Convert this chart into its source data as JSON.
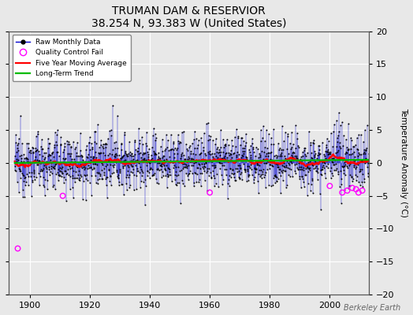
{
  "title": "TRUMAN DAM & RESERVIOR",
  "subtitle": "38.254 N, 93.383 W (United States)",
  "ylabel": "Temperature Anomaly (°C)",
  "credit": "Berkeley Earth",
  "year_start": 1895,
  "year_end": 2013,
  "ylim": [
    -20,
    20
  ],
  "yticks": [
    -20,
    -15,
    -10,
    -5,
    0,
    5,
    10,
    15,
    20
  ],
  "xticks": [
    1900,
    1920,
    1940,
    1960,
    1980,
    2000
  ],
  "raw_line_color": "#0000cc",
  "raw_dot_color": "#000000",
  "moving_avg_color": "#ff0000",
  "trend_color": "#00bb00",
  "qc_color": "#ff00ff",
  "background_color": "#e8e8e8",
  "grid_color": "#ffffff",
  "seed": 12345,
  "n_months": 1416,
  "noise_std": 2.2,
  "trend_slope": 0.004,
  "trend_intercept": 0.0,
  "xlim_left": 1893,
  "xlim_right": 2013
}
